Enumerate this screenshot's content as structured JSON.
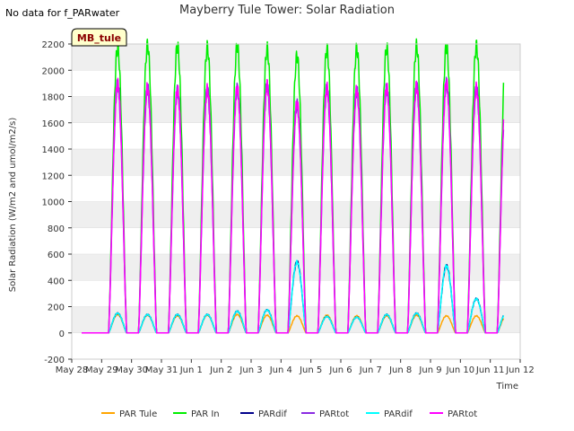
{
  "header": {
    "no_data_note": "No data for f_PARwater",
    "title": "Mayberry Tule Tower: Solar Radiation"
  },
  "site_badge": {
    "label": "MB_tule",
    "bg_color": "#ffffcc",
    "text_color": "#8b0000"
  },
  "chart_data": {
    "type": "line",
    "title": "Mayberry Tule Tower: Solar Radiation",
    "xlabel": "Time",
    "ylabel": "Solar Radiation (W/m2 and umol/m2/s)",
    "ylim": [
      -200,
      2200
    ],
    "yticks": [
      -200,
      0,
      200,
      400,
      600,
      800,
      1000,
      1200,
      1400,
      1600,
      1800,
      2000,
      2200
    ],
    "xlim": [
      0,
      15
    ],
    "xticks": [
      {
        "label": "May 28",
        "x": 0
      },
      {
        "label": "May 29",
        "x": 1
      },
      {
        "label": "May 30",
        "x": 2
      },
      {
        "label": "May 31",
        "x": 3
      },
      {
        "label": "Jun 1",
        "x": 4
      },
      {
        "label": "Jun 2",
        "x": 5
      },
      {
        "label": "Jun 3",
        "x": 6
      },
      {
        "label": "Jun 4",
        "x": 7
      },
      {
        "label": "Jun 5",
        "x": 8
      },
      {
        "label": "Jun 6",
        "x": 9
      },
      {
        "label": "Jun 7",
        "x": 10
      },
      {
        "label": "Jun 8",
        "x": 11
      },
      {
        "label": "Jun 9",
        "x": 12
      },
      {
        "label": "Jun 10",
        "x": 13
      },
      {
        "label": "Jun 11",
        "x": 14
      },
      {
        "label": "Jun 12",
        "x": 15
      }
    ],
    "data_start": 0.33,
    "data_end": 14.45,
    "sunrise": 0.23,
    "sunset": 0.84,
    "grid": "horizontal-bands",
    "legend_position": "bottom",
    "series": [
      {
        "name": "PAR Tule",
        "color": "#ffa500",
        "daily_peaks": [
          140,
          135,
          130,
          135,
          140,
          135,
          130,
          135,
          130,
          130,
          135,
          130,
          130,
          130
        ]
      },
      {
        "name": "PAR In",
        "color": "#00ee00",
        "daily_peaks": [
          2170,
          2190,
          2185,
          2175,
          2185,
          2165,
          2110,
          2160,
          2165,
          2170,
          2185,
          2180,
          2185,
          2180
        ]
      },
      {
        "name": "PARdif",
        "color": "#00008b",
        "daily_peaks": [
          150,
          140,
          140,
          140,
          165,
          175,
          540,
          125,
          120,
          140,
          150,
          510,
          260,
          155
        ]
      },
      {
        "name": "PARtot",
        "color": "#8a2be2",
        "daily_peaks": [
          1890,
          1860,
          1845,
          1850,
          1860,
          1880,
          1740,
          1860,
          1845,
          1865,
          1875,
          1900,
          1860,
          1860
        ]
      },
      {
        "name": "PARdif",
        "color": "#00ffff",
        "daily_peaks": [
          150,
          140,
          140,
          140,
          165,
          175,
          540,
          125,
          120,
          140,
          150,
          510,
          260,
          155
        ]
      },
      {
        "name": "PARtot",
        "color": "#ff00ff",
        "daily_peaks": [
          1900,
          1870,
          1850,
          1855,
          1865,
          1890,
          1750,
          1865,
          1850,
          1870,
          1880,
          1905,
          1865,
          1865
        ]
      }
    ]
  }
}
